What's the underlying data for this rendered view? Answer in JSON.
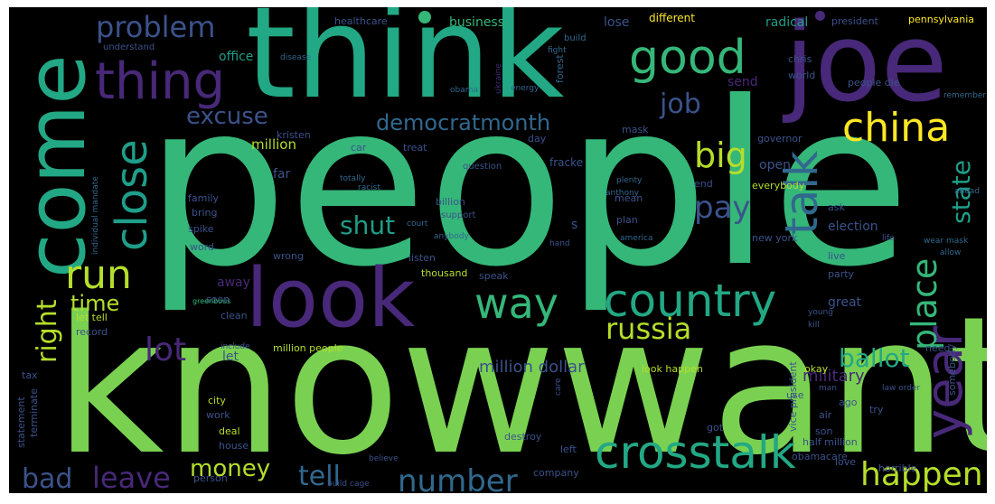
{
  "palette": {
    "green_bright": "#7ad151",
    "green": "#35b779",
    "teal": "#22a884",
    "teal_blue": "#1f9e89",
    "blue": "#31688e",
    "blue_gray": "#3b528b",
    "purple": "#482878",
    "dark_purple": "#440154",
    "yellow": "#fde725",
    "olive": "#b5de2b"
  },
  "words": [
    "people",
    "knowwant",
    "think",
    "joe",
    "come",
    "look",
    "thing",
    "good",
    "china",
    "problem",
    "country",
    "crosstalk",
    "year",
    "talk",
    "close",
    "run",
    "way",
    "russia",
    "job",
    "big",
    "pay",
    "democratmonth",
    "excuse",
    "right",
    "place",
    "state",
    "happen",
    "number",
    "ballot",
    "leave",
    "bad",
    "tell",
    "lot",
    "money",
    "shut",
    "time",
    "military",
    "million dollar",
    "business",
    "healthcare",
    "different",
    "radical",
    "president",
    "pennsylvania",
    "office",
    "understand",
    "build",
    "lose",
    "forest",
    "chris",
    "world",
    "send",
    "people die",
    "energy",
    "disease",
    "fight",
    "obama",
    "ukraine",
    "kristen",
    "governor",
    "mask",
    "fracke",
    "million",
    "treat",
    "car",
    "day",
    "question",
    "far",
    "open",
    "end",
    "mean",
    "billion",
    "support",
    "ask",
    "family",
    "bring",
    "spike",
    "individual mandate",
    "everybody",
    "election",
    "plan",
    "new york",
    "word",
    "live",
    "wrong",
    "listen",
    "thousand",
    "party",
    "speak",
    "away",
    "clean",
    "soon",
    "great",
    "million people",
    "look happen",
    "okay",
    "let",
    "include",
    "record",
    "let tell",
    "city",
    "deal",
    "work",
    "use",
    "ago",
    "son",
    "air",
    "vice president",
    "half million",
    "obamacare",
    "try",
    "need",
    "somebody",
    "house",
    "person",
    "destroy",
    "left",
    "company",
    "love",
    "horrible",
    "believe",
    "tax",
    "statement",
    "terminate",
    "got",
    "s",
    "young",
    "kill",
    "man",
    "law order",
    "care",
    "anybody",
    "greenbous",
    "build cage",
    "hand",
    "life",
    "totally",
    "racist",
    "court",
    "anthony",
    "plenty",
    "america",
    "wear mask",
    "allow",
    "remember",
    "ahead"
  ]
}
